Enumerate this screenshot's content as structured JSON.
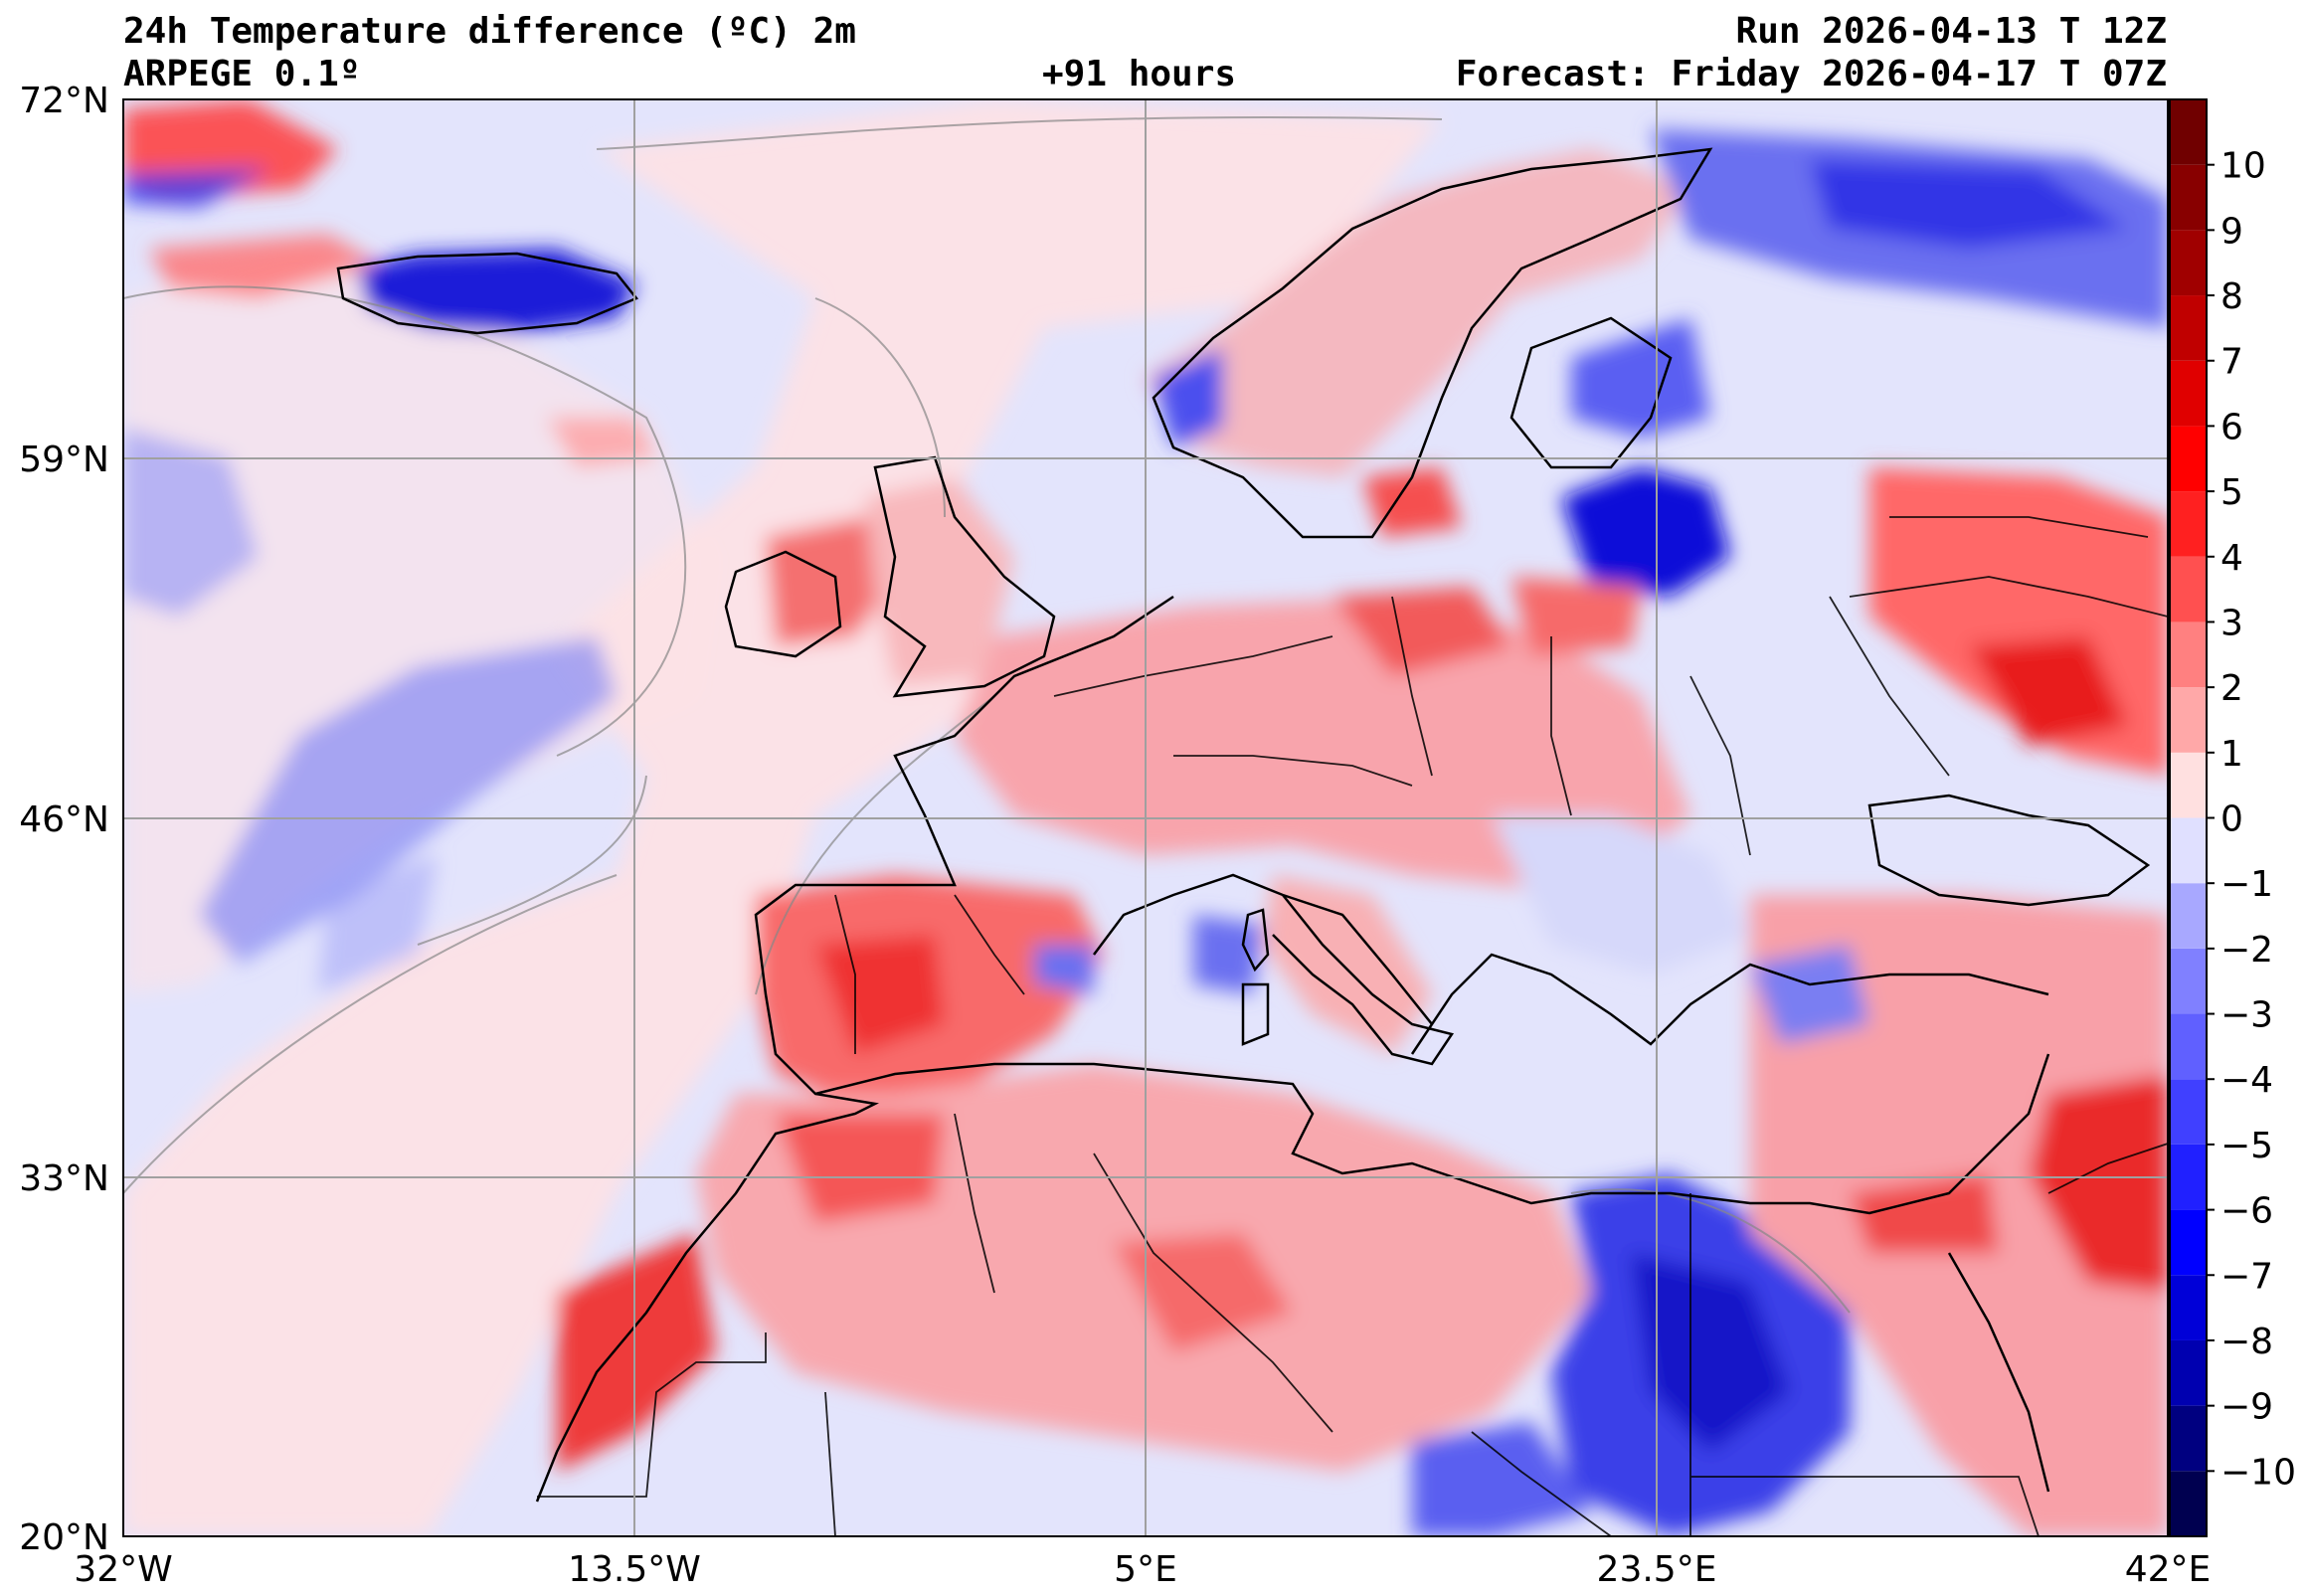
{
  "header": {
    "title": "24h Temperature difference (ºC) 2m",
    "model": "ARPEGE 0.1º",
    "run": "Run 2026-04-13 T 12Z",
    "lead_time": "+91 hours",
    "forecast": "Forecast: Friday 2026-04-17 T 07Z"
  },
  "map": {
    "latitude_labels": [
      "72°N",
      "59°N",
      "46°N",
      "33°N",
      "20°N"
    ],
    "longitude_labels": [
      "32°W",
      "13.5°W",
      "5°E",
      "23.5°E",
      "42°E"
    ],
    "lat_range": [
      20,
      72
    ],
    "lon_range": [
      -32,
      42
    ],
    "grid": true
  },
  "colorbar": {
    "levels": [
      -11,
      -10,
      -9,
      -8,
      -7,
      -6,
      -5,
      -4,
      -3,
      -2,
      -1,
      0,
      1,
      2,
      3,
      4,
      5,
      6,
      7,
      8,
      9,
      10,
      11
    ],
    "tick_labels": [
      "−10",
      "−9",
      "−8",
      "−7",
      "−6",
      "−5",
      "−4",
      "−3",
      "−2",
      "−1",
      "0",
      "1",
      "2",
      "3",
      "4",
      "5",
      "6",
      "7",
      "8",
      "9",
      "10"
    ],
    "colors": [
      "#000050",
      "#000080",
      "#0000b0",
      "#0000d8",
      "#0000ff",
      "#2020ff",
      "#4040ff",
      "#6060ff",
      "#8080ff",
      "#a8a8ff",
      "#e0e0ff",
      "#ffe0e0",
      "#ffa8a8",
      "#ff8080",
      "#ff5050",
      "#ff2020",
      "#ff0000",
      "#e00000",
      "#c00000",
      "#a00000",
      "#880000",
      "#700000"
    ]
  },
  "colors": {
    "ocean_background": "#e3e4fc",
    "warm_light": "#ffe0e0",
    "cold_light": "#e0e0ff",
    "contour": "#888888",
    "coast": "#000000",
    "grid": "#a0a0a0"
  }
}
